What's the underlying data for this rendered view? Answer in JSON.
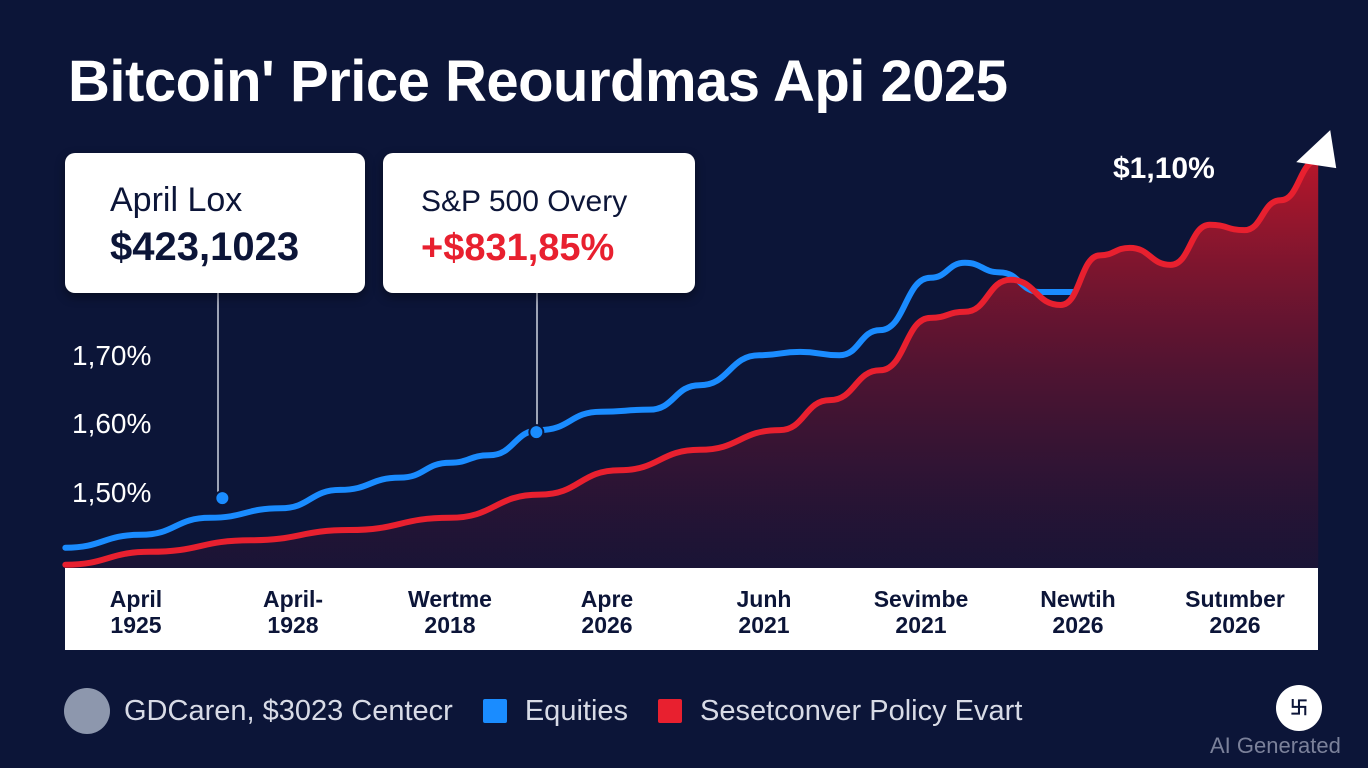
{
  "title": "Bitcoin' Price Reourdmas Api 2025",
  "callouts": [
    {
      "label": "April Lox",
      "value": "$423,1023"
    },
    {
      "label": "S&P 500 Overy",
      "value": "+$831,85%"
    }
  ],
  "peak_label": "$1,10%",
  "legend": {
    "source": "GDCaren, $3023 Centecr",
    "items": [
      "Equities",
      "Sesetconver Policy Evart"
    ]
  },
  "watermark": "AI Generated",
  "colors": {
    "background": "#0c1538",
    "blue": "#1a8cff",
    "red": "#e8202f"
  },
  "chart_data": {
    "type": "line",
    "title": "Bitcoin' Price Reourdmas Api 2025",
    "categories": [
      "April\n1925",
      "April-\n1928",
      "Wertme\n2018",
      "Apre\n2026",
      "Junh\n2021",
      "Sevimbe\n2021",
      "Newtih\n2026",
      "Sutımber\n2026"
    ],
    "y_ticks": [
      "1,50%",
      "1,60%",
      "1,70%"
    ],
    "ylim": [
      1.39,
      2.0
    ],
    "grid": false,
    "legend_placement": "bottom",
    "series": [
      {
        "name": "Equities",
        "color": "#1a8cff",
        "x": [
          -0.45,
          0.03,
          0.47,
          0.92,
          1.3,
          1.68,
          2.0,
          2.25,
          2.57,
          2.96,
          3.27,
          3.59,
          3.97,
          4.23,
          4.48,
          4.74,
          5.06,
          5.28,
          5.5,
          5.76,
          5.98
        ],
        "y": [
          1.421,
          1.44,
          1.465,
          1.479,
          1.506,
          1.524,
          1.546,
          1.557,
          1.594,
          1.621,
          1.624,
          1.66,
          1.704,
          1.709,
          1.704,
          1.741,
          1.818,
          1.84,
          1.826,
          1.797,
          1.797
        ]
      },
      {
        "name": "Sesetconver Policy Evart",
        "color": "#e8202f",
        "area": true,
        "x": [
          -0.45,
          0.09,
          0.73,
          1.36,
          2.0,
          2.57,
          3.08,
          3.59,
          4.1,
          4.42,
          4.74,
          5.06,
          5.28,
          5.57,
          5.89,
          6.14,
          6.33,
          6.59,
          6.84,
          7.06,
          7.29,
          7.53
        ],
        "y": [
          1.396,
          1.415,
          1.432,
          1.447,
          1.465,
          1.499,
          1.535,
          1.565,
          1.594,
          1.638,
          1.682,
          1.759,
          1.768,
          1.815,
          1.778,
          1.851,
          1.862,
          1.837,
          1.896,
          1.888,
          1.932,
          1.991
        ]
      }
    ],
    "markers": [
      {
        "series": 0,
        "x": 0.55,
        "y": 1.494
      },
      {
        "series": 0,
        "x": 2.55,
        "y": 1.591
      }
    ]
  }
}
